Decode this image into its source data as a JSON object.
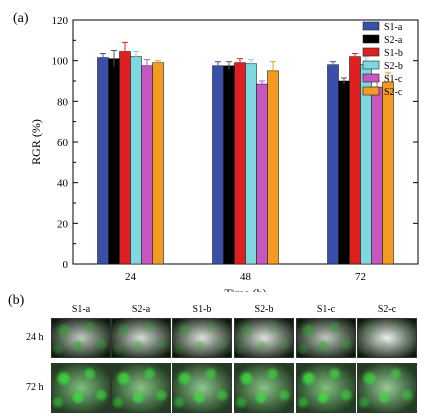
{
  "panel_a_label": "(a)",
  "panel_b_label": "(b)",
  "chart_data": {
    "type": "bar",
    "xlabel": "Time (h)",
    "ylabel": "RGR (%)",
    "ylim": [
      0,
      120
    ],
    "yticks": [
      0,
      20,
      40,
      60,
      80,
      100,
      120
    ],
    "categories": [
      "24",
      "48",
      "72"
    ],
    "legend_position": "top-right",
    "series": [
      {
        "name": "S1-a",
        "color": "#3a4fa8",
        "values": [
          101.5,
          97.5,
          98.0
        ],
        "errors": [
          2.0,
          2.0,
          1.5
        ]
      },
      {
        "name": "S2-a",
        "color": "#000000",
        "values": [
          101.0,
          97.5,
          90.0
        ],
        "errors": [
          4.0,
          2.0,
          1.5
        ]
      },
      {
        "name": "S1-b",
        "color": "#e02020",
        "values": [
          104.5,
          99.0,
          102.0
        ],
        "errors": [
          4.5,
          2.0,
          1.5
        ]
      },
      {
        "name": "S2-b",
        "color": "#7ed8e0",
        "values": [
          102.0,
          98.5,
          98.0
        ],
        "errors": [
          2.5,
          2.0,
          4.0
        ]
      },
      {
        "name": "S1-c",
        "color": "#c656c0",
        "values": [
          97.5,
          88.5,
          87.0
        ],
        "errors": [
          3.0,
          1.5,
          3.0
        ]
      },
      {
        "name": "S2-c",
        "color": "#f39a20",
        "values": [
          99.0,
          95.0,
          89.5
        ],
        "errors": [
          1.0,
          4.5,
          4.5
        ]
      }
    ]
  },
  "micrographs": {
    "columns": [
      "S1-a",
      "S2-a",
      "S1-b",
      "S2-b",
      "S1-c",
      "S2-c"
    ],
    "rows": [
      "24 h",
      "72 h"
    ],
    "intensity_24h": [
      0.55,
      0.35,
      0.3,
      0.3,
      0.55,
      0.15
    ],
    "intensity_72h": [
      0.85,
      0.8,
      0.75,
      0.8,
      0.85,
      0.7
    ]
  }
}
